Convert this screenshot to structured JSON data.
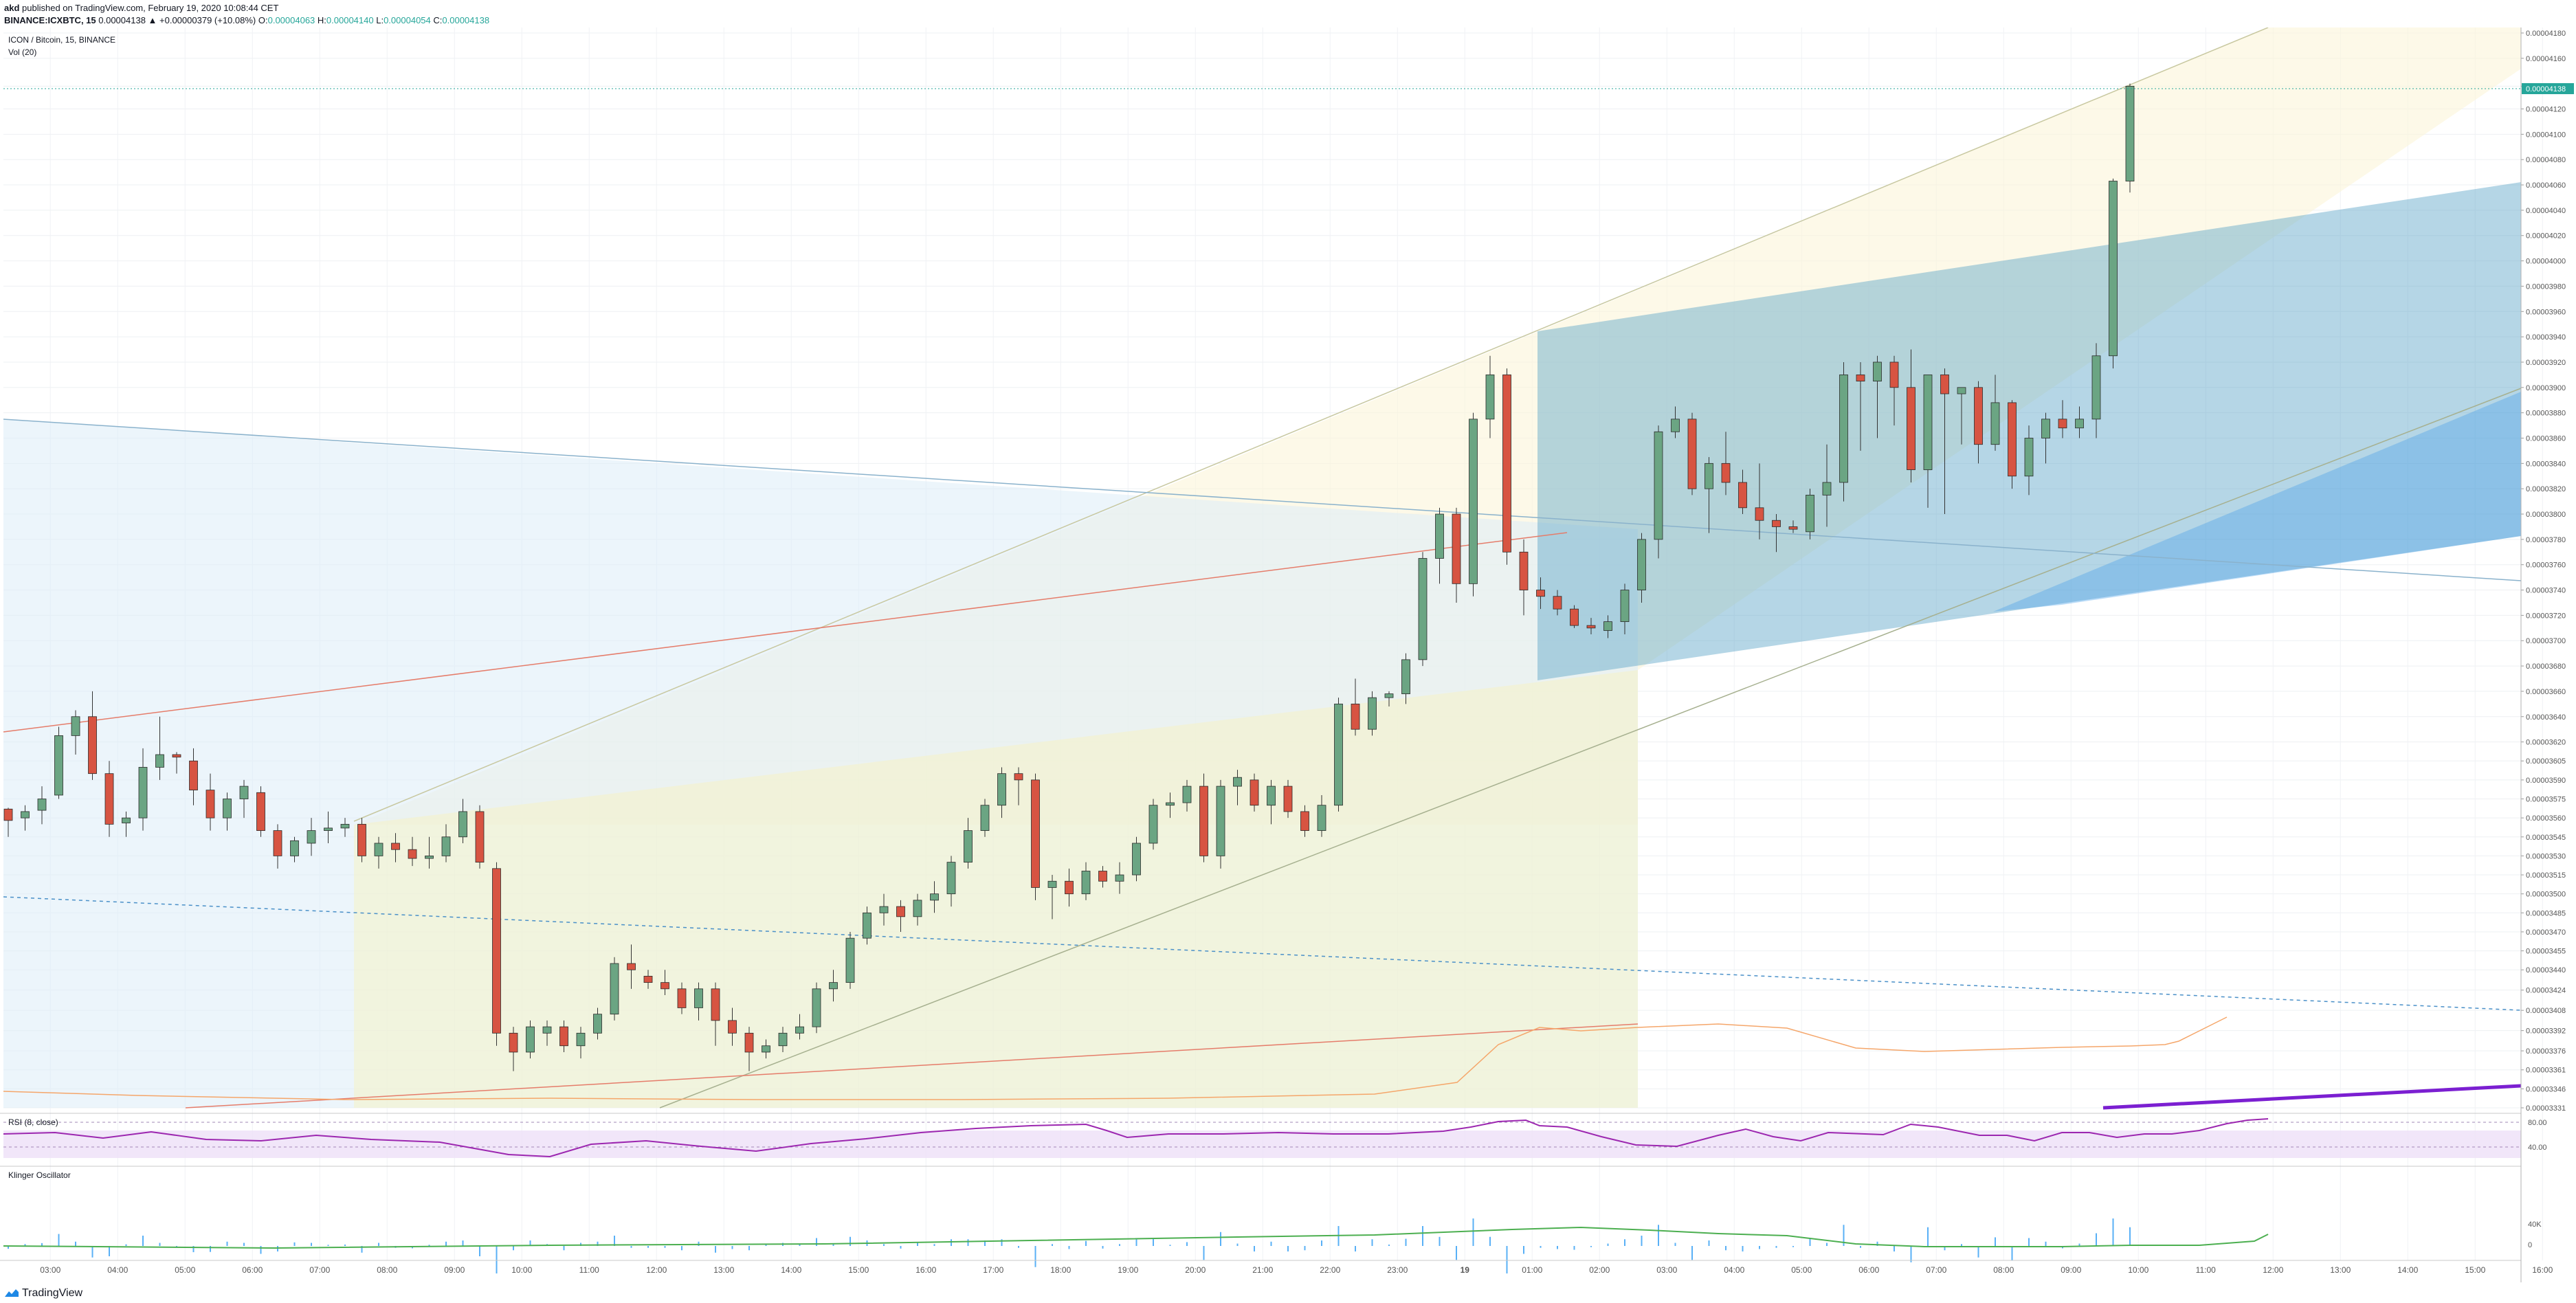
{
  "header": {
    "publisher": "akd",
    "published_text": "published on TradingView.com, February 19, 2020 10:08:44 CET",
    "symbol_line": "BINANCE:ICXBTC, 15",
    "change_text": "0.00004138 ▲ +0.00000379 (+10.08%)",
    "o_label": "O:",
    "o_value": "0.00004063",
    "h_label": "H:",
    "h_value": "0.00004140",
    "l_label": "L:",
    "l_value": "0.00004054",
    "c_label": "C:",
    "c_value": "0.00004138"
  },
  "legend": {
    "title": "ICON / Bitcoin, 15, BINANCE",
    "volume": "Vol (20)"
  },
  "rsi_panel": {
    "label": "RSI (8, close)",
    "levels": [
      "80.00",
      "40.00"
    ]
  },
  "klinger_panel": {
    "label": "Klinger Oscillator",
    "levels": [
      "40K",
      "0"
    ]
  },
  "footer": {
    "brand": "TradingView"
  },
  "colors": {
    "up": "#26a69a",
    "up_body": "#6ba583",
    "down": "#d9534f",
    "down_body": "#d75442",
    "last_price_tag": "#26a69a",
    "rsi_line": "#9c27b0",
    "klinger_line": "#4caf50",
    "klinger_hist": "#2196f3",
    "channel_fill": "#fff3c4",
    "pitchfork_fill": "#8fc4e0"
  },
  "chart_data": {
    "type": "candlestick",
    "symbol": "ICXBTC",
    "interval": "15",
    "exchange": "BINANCE",
    "price_axis_ticks": [
      "0.00004180",
      "0.00004160",
      "0.00004138",
      "0.00004120",
      "0.00004100",
      "0.00004080",
      "0.00004060",
      "0.00004040",
      "0.00004020",
      "0.00004000",
      "0.00003980",
      "0.00003960",
      "0.00003940",
      "0.00003920",
      "0.00003900",
      "0.00003880",
      "0.00003860",
      "0.00003840",
      "0.00003820",
      "0.00003800",
      "0.00003780",
      "0.00003760",
      "0.00003740",
      "0.00003720",
      "0.00003700",
      "0.00003680",
      "0.00003660",
      "0.00003640",
      "0.00003620",
      "0.00003605",
      "0.00003590",
      "0.00003575",
      "0.00003560",
      "0.00003545",
      "0.00003530",
      "0.00003515",
      "0.00003500",
      "0.00003485",
      "0.00003470",
      "0.00003455",
      "0.00003440",
      "0.00003424",
      "0.00003408",
      "0.00003392",
      "0.00003376",
      "0.00003361",
      "0.00003346",
      "0.00003331"
    ],
    "last_price": "0.00004138",
    "time_axis_ticks": [
      "03:00",
      "04:00",
      "05:00",
      "06:00",
      "07:00",
      "08:00",
      "09:00",
      "10:00",
      "11:00",
      "12:00",
      "13:00",
      "14:00",
      "15:00",
      "16:00",
      "17:00",
      "18:00",
      "19:00",
      "20:00",
      "21:00",
      "22:00",
      "23:00",
      "19",
      "01:00",
      "02:00",
      "03:00",
      "04:00",
      "05:00",
      "06:00",
      "07:00",
      "08:00",
      "09:00",
      "10:00",
      "11:00",
      "12:00",
      "13:00",
      "14:00",
      "15:00",
      "16:00"
    ],
    "time_axis_positions": [
      2.5,
      6.5,
      10.5,
      14.5,
      18.5,
      22.5,
      26.5,
      30.5,
      34.5,
      38.5,
      42.5,
      46.5,
      50.5,
      54.5,
      58.5,
      62.5,
      66.5,
      70.5,
      74.5,
      78.5,
      82.5,
      86.5,
      90.5,
      94.5,
      98.5,
      102.5,
      106.5,
      110.5,
      114.5,
      118.5,
      122.5,
      126.5,
      130.5,
      134.5,
      138.5,
      142.5,
      146.5,
      150.5
    ],
    "candles": [
      [
        3567,
        3568,
        3545,
        3558
      ],
      [
        3560,
        3570,
        3550,
        3565
      ],
      [
        3566,
        3585,
        3555,
        3575
      ],
      [
        3578,
        3632,
        3575,
        3625
      ],
      [
        3625,
        3645,
        3610,
        3640
      ],
      [
        3640,
        3660,
        3590,
        3595
      ],
      [
        3595,
        3605,
        3545,
        3555
      ],
      [
        3556,
        3565,
        3545,
        3560
      ],
      [
        3560,
        3615,
        3550,
        3600
      ],
      [
        3600,
        3640,
        3590,
        3610
      ],
      [
        3610,
        3612,
        3595,
        3608
      ],
      [
        3605,
        3615,
        3570,
        3582
      ],
      [
        3582,
        3595,
        3550,
        3560
      ],
      [
        3560,
        3580,
        3550,
        3575
      ],
      [
        3575,
        3590,
        3560,
        3585
      ],
      [
        3580,
        3585,
        3545,
        3550
      ],
      [
        3550,
        3555,
        3520,
        3530
      ],
      [
        3530,
        3545,
        3525,
        3542
      ],
      [
        3540,
        3560,
        3530,
        3550
      ],
      [
        3550,
        3565,
        3540,
        3552
      ],
      [
        3552,
        3560,
        3545,
        3555
      ],
      [
        3555,
        3560,
        3525,
        3530
      ],
      [
        3530,
        3545,
        3520,
        3540
      ],
      [
        3540,
        3548,
        3525,
        3535
      ],
      [
        3535,
        3545,
        3522,
        3528
      ],
      [
        3528,
        3545,
        3520,
        3530
      ],
      [
        3530,
        3555,
        3525,
        3545
      ],
      [
        3545,
        3575,
        3540,
        3565
      ],
      [
        3565,
        3570,
        3520,
        3525
      ],
      [
        3520,
        3525,
        3380,
        3390
      ],
      [
        3390,
        3395,
        3360,
        3375
      ],
      [
        3375,
        3400,
        3370,
        3395
      ],
      [
        3390,
        3400,
        3380,
        3395
      ],
      [
        3395,
        3400,
        3375,
        3380
      ],
      [
        3380,
        3395,
        3370,
        3390
      ],
      [
        3390,
        3410,
        3385,
        3405
      ],
      [
        3405,
        3450,
        3400,
        3445
      ],
      [
        3445,
        3460,
        3425,
        3440
      ],
      [
        3435,
        3440,
        3425,
        3430
      ],
      [
        3430,
        3440,
        3420,
        3425
      ],
      [
        3425,
        3430,
        3405,
        3410
      ],
      [
        3410,
        3430,
        3400,
        3425
      ],
      [
        3425,
        3430,
        3380,
        3400
      ],
      [
        3400,
        3410,
        3380,
        3390
      ],
      [
        3390,
        3395,
        3360,
        3375
      ],
      [
        3375,
        3385,
        3370,
        3380
      ],
      [
        3380,
        3395,
        3375,
        3390
      ],
      [
        3390,
        3405,
        3385,
        3395
      ],
      [
        3395,
        3430,
        3390,
        3425
      ],
      [
        3425,
        3440,
        3415,
        3430
      ],
      [
        3430,
        3470,
        3425,
        3465
      ],
      [
        3465,
        3490,
        3460,
        3485
      ],
      [
        3485,
        3500,
        3475,
        3490
      ],
      [
        3490,
        3495,
        3470,
        3482
      ],
      [
        3482,
        3500,
        3475,
        3495
      ],
      [
        3495,
        3510,
        3485,
        3500
      ],
      [
        3500,
        3530,
        3490,
        3525
      ],
      [
        3525,
        3560,
        3520,
        3550
      ],
      [
        3550,
        3575,
        3545,
        3570
      ],
      [
        3570,
        3600,
        3560,
        3595
      ],
      [
        3595,
        3600,
        3570,
        3590
      ],
      [
        3590,
        3595,
        3495,
        3505
      ],
      [
        3505,
        3515,
        3480,
        3510
      ],
      [
        3510,
        3520,
        3490,
        3500
      ],
      [
        3500,
        3525,
        3495,
        3518
      ],
      [
        3518,
        3522,
        3505,
        3510
      ],
      [
        3510,
        3525,
        3500,
        3515
      ],
      [
        3515,
        3545,
        3510,
        3540
      ],
      [
        3540,
        3575,
        3535,
        3570
      ],
      [
        3570,
        3580,
        3560,
        3572
      ],
      [
        3572,
        3590,
        3565,
        3585
      ],
      [
        3585,
        3595,
        3525,
        3530
      ],
      [
        3530,
        3590,
        3520,
        3585
      ],
      [
        3585,
        3598,
        3570,
        3592
      ],
      [
        3590,
        3595,
        3565,
        3570
      ],
      [
        3570,
        3590,
        3555,
        3585
      ],
      [
        3585,
        3590,
        3560,
        3565
      ],
      [
        3565,
        3570,
        3545,
        3550
      ],
      [
        3550,
        3578,
        3545,
        3570
      ],
      [
        3570,
        3655,
        3565,
        3650
      ],
      [
        3650,
        3670,
        3625,
        3630
      ],
      [
        3630,
        3660,
        3625,
        3655
      ],
      [
        3655,
        3660,
        3648,
        3658
      ],
      [
        3658,
        3690,
        3650,
        3685
      ],
      [
        3685,
        3770,
        3680,
        3765
      ],
      [
        3765,
        3805,
        3745,
        3800
      ],
      [
        3800,
        3805,
        3730,
        3745
      ],
      [
        3745,
        3880,
        3735,
        3875
      ],
      [
        3875,
        3925,
        3860,
        3910
      ],
      [
        3910,
        3915,
        3760,
        3770
      ],
      [
        3770,
        3780,
        3720,
        3740
      ],
      [
        3740,
        3750,
        3725,
        3735
      ],
      [
        3735,
        3740,
        3720,
        3725
      ],
      [
        3725,
        3728,
        3710,
        3712
      ],
      [
        3712,
        3718,
        3705,
        3710
      ],
      [
        3708,
        3720,
        3702,
        3715
      ],
      [
        3715,
        3745,
        3705,
        3740
      ],
      [
        3740,
        3785,
        3730,
        3780
      ],
      [
        3780,
        3870,
        3765,
        3865
      ],
      [
        3865,
        3885,
        3860,
        3875
      ],
      [
        3875,
        3880,
        3815,
        3820
      ],
      [
        3820,
        3845,
        3785,
        3840
      ],
      [
        3840,
        3865,
        3815,
        3825
      ],
      [
        3825,
        3835,
        3800,
        3805
      ],
      [
        3805,
        3840,
        3780,
        3795
      ],
      [
        3795,
        3800,
        3770,
        3790
      ],
      [
        3790,
        3795,
        3785,
        3788
      ],
      [
        3786,
        3820,
        3780,
        3815
      ],
      [
        3815,
        3855,
        3790,
        3825
      ],
      [
        3825,
        3920,
        3810,
        3910
      ],
      [
        3910,
        3920,
        3850,
        3905
      ],
      [
        3905,
        3925,
        3860,
        3920
      ],
      [
        3920,
        3925,
        3870,
        3900
      ],
      [
        3900,
        3930,
        3825,
        3835
      ],
      [
        3835,
        3910,
        3805,
        3910
      ],
      [
        3910,
        3915,
        3800,
        3895
      ],
      [
        3895,
        3900,
        3855,
        3900
      ],
      [
        3900,
        3905,
        3840,
        3855
      ],
      [
        3855,
        3910,
        3850,
        3888
      ],
      [
        3888,
        3890,
        3820,
        3830
      ],
      [
        3830,
        3870,
        3815,
        3860
      ],
      [
        3860,
        3880,
        3840,
        3875
      ],
      [
        3875,
        3890,
        3860,
        3868
      ],
      [
        3868,
        3885,
        3860,
        3875
      ],
      [
        3875,
        3935,
        3860,
        3925
      ],
      [
        3925,
        4065,
        3915,
        4063
      ],
      [
        4063,
        4140,
        4054,
        4138
      ]
    ],
    "start_index": 0
  }
}
